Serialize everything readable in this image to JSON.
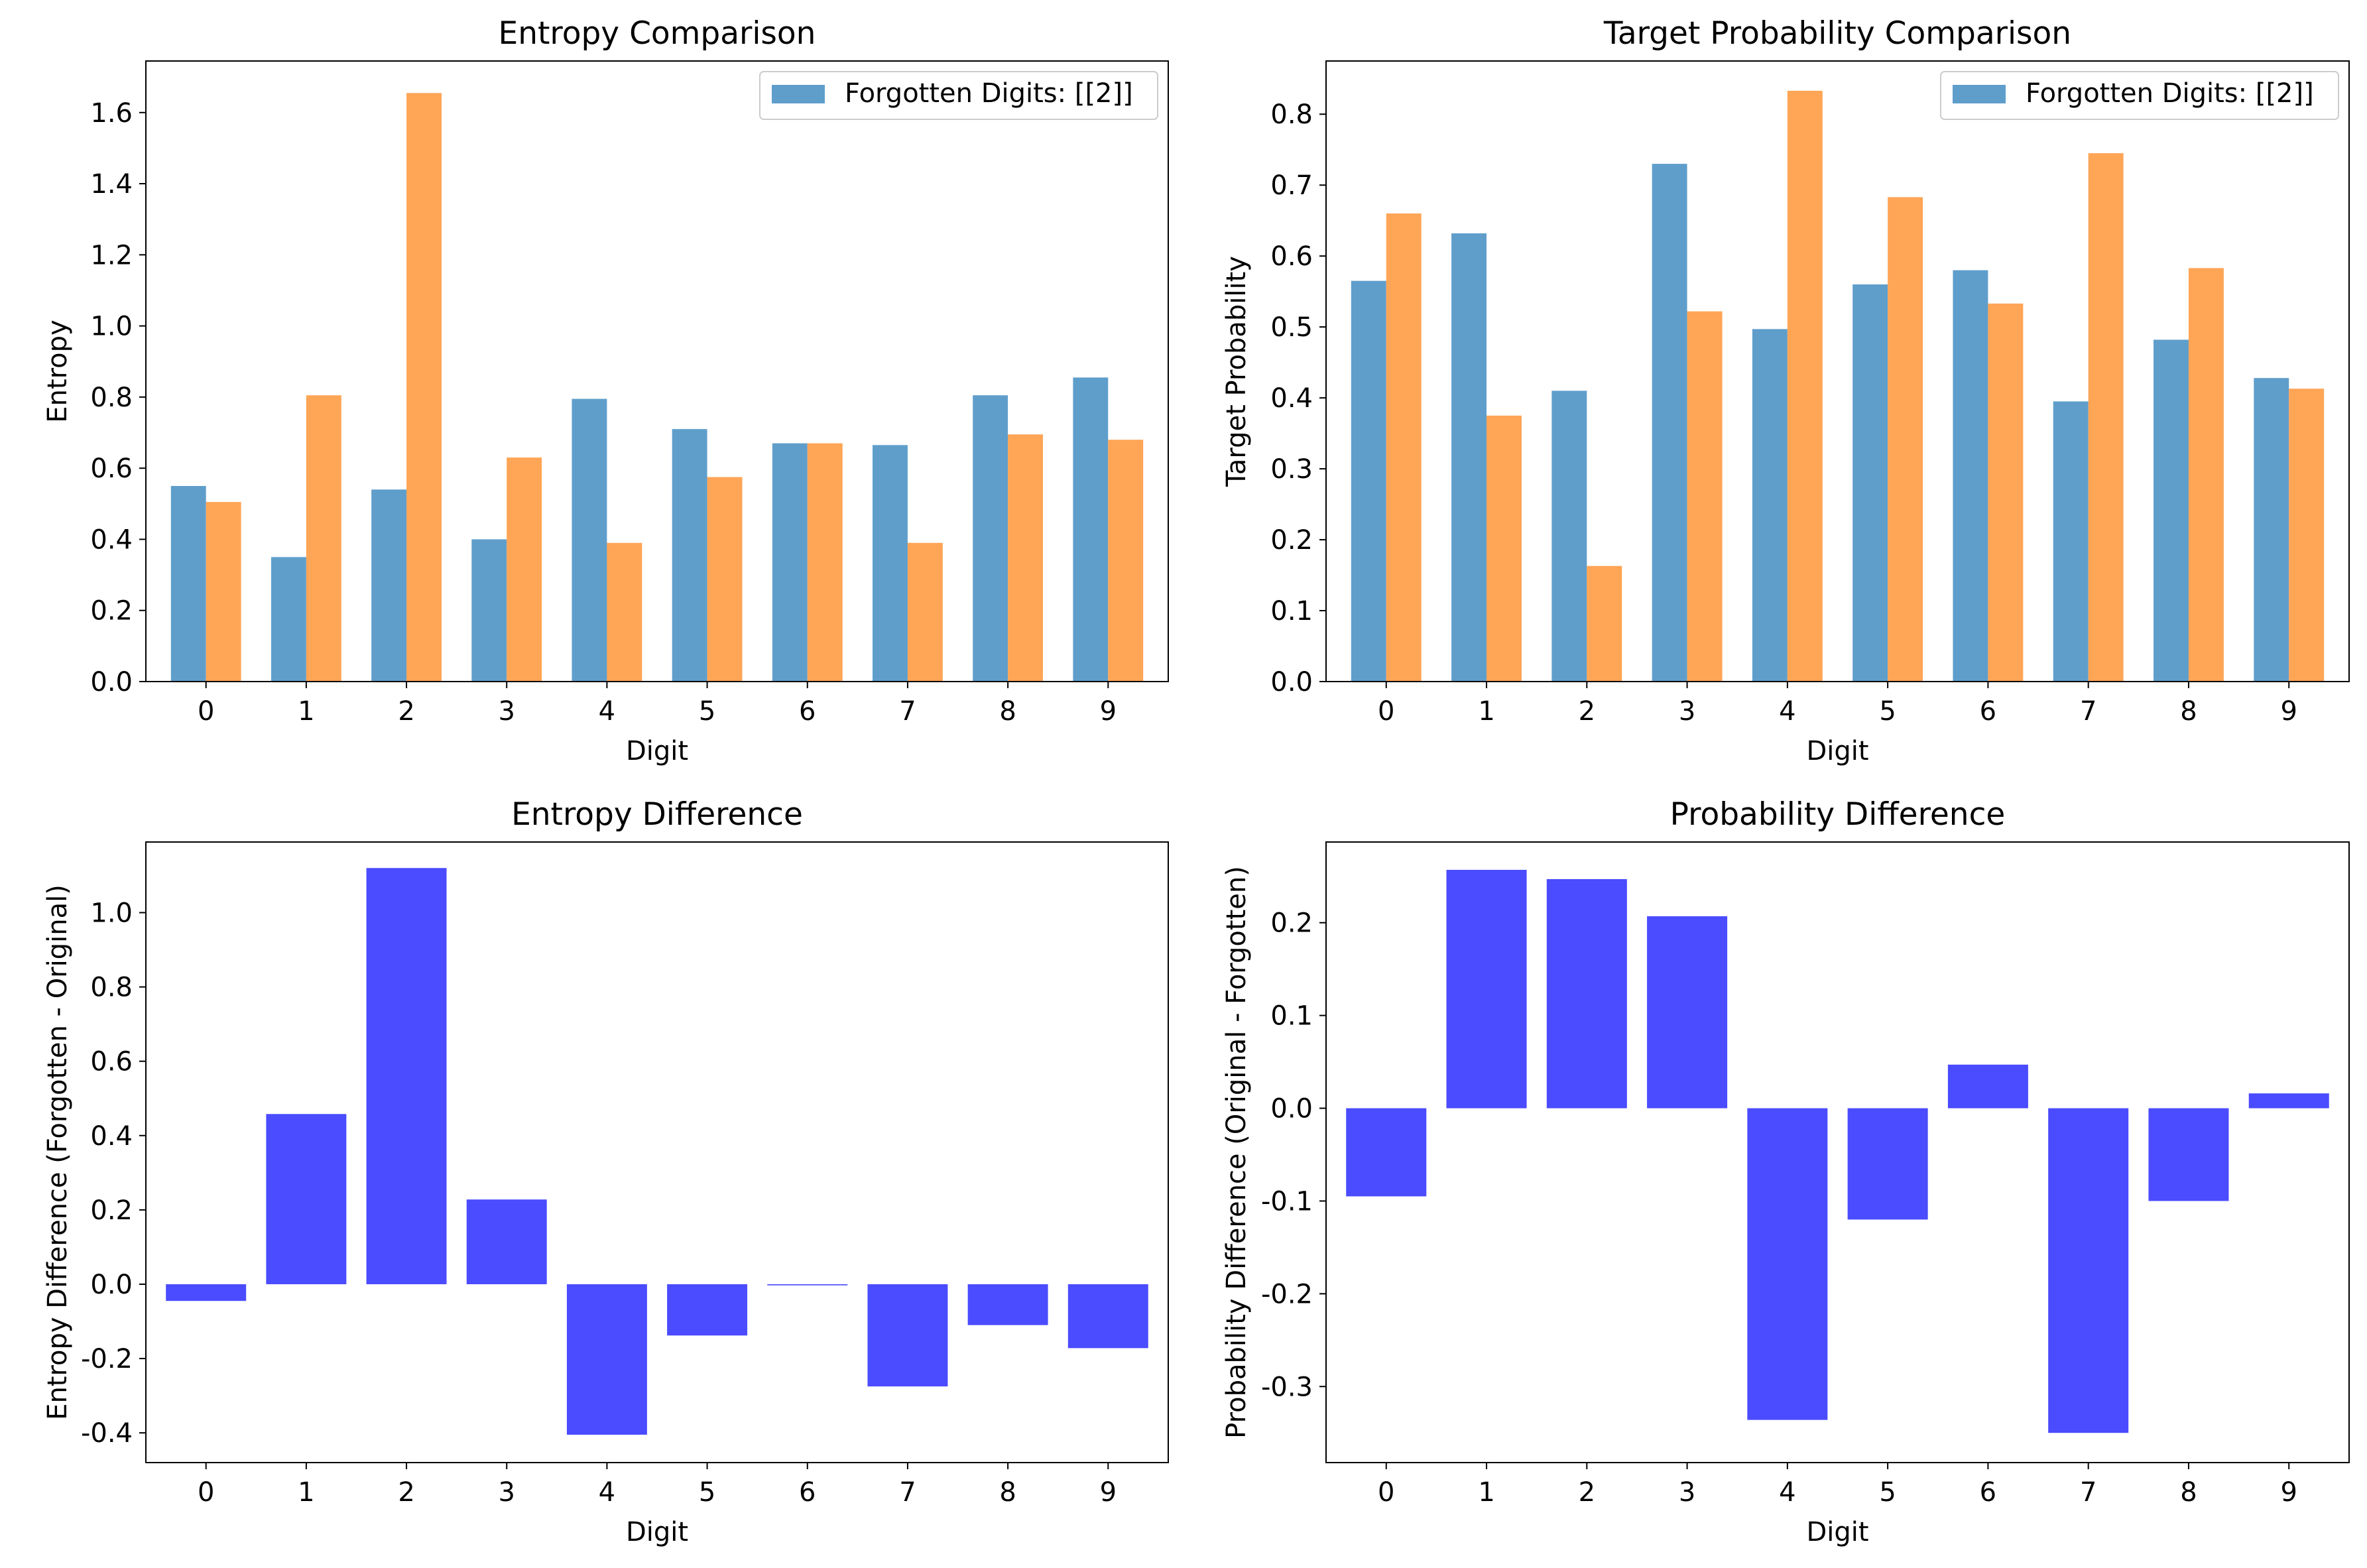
{
  "colors": {
    "series_a": "#5f9ecb",
    "series_b": "#ffa556",
    "diff": "#4b4bff",
    "axis": "#000000"
  },
  "chart_data": [
    {
      "type": "bar",
      "title": "Entropy Comparison",
      "xlabel": "Digit",
      "ylabel": "Entropy",
      "categories": [
        "0",
        "1",
        "2",
        "3",
        "4",
        "5",
        "6",
        "7",
        "8",
        "9"
      ],
      "series": [
        {
          "name": "Forgotten Digits: [[2]]",
          "color_key": "series_a",
          "values": [
            0.55,
            0.35,
            0.54,
            0.4,
            0.795,
            0.71,
            0.67,
            0.665,
            0.805,
            0.855
          ]
        },
        {
          "color_key": "series_b",
          "values": [
            0.505,
            0.805,
            1.655,
            0.63,
            0.39,
            0.575,
            0.67,
            0.39,
            0.695,
            0.68
          ]
        }
      ],
      "ylim": [
        0,
        1.745
      ],
      "yticks": [
        0.0,
        0.2,
        0.4,
        0.6,
        0.8,
        1.0,
        1.2,
        1.4,
        1.6
      ],
      "ytick_labels": [
        "0.0",
        "0.2",
        "0.4",
        "0.6",
        "0.8",
        "1.0",
        "1.2",
        "1.4",
        "1.6"
      ],
      "legend": "top-right",
      "grouped": true
    },
    {
      "type": "bar",
      "title": "Target Probability Comparison",
      "xlabel": "Digit",
      "ylabel": "Target Probability",
      "categories": [
        "0",
        "1",
        "2",
        "3",
        "4",
        "5",
        "6",
        "7",
        "8",
        "9"
      ],
      "series": [
        {
          "name": "Forgotten Digits: [[2]]",
          "color_key": "series_a",
          "values": [
            0.565,
            0.632,
            0.41,
            0.73,
            0.497,
            0.56,
            0.58,
            0.395,
            0.482,
            0.428
          ]
        },
        {
          "color_key": "series_b",
          "values": [
            0.66,
            0.375,
            0.163,
            0.522,
            0.833,
            0.683,
            0.533,
            0.745,
            0.583,
            0.413
          ]
        }
      ],
      "ylim": [
        0,
        0.875
      ],
      "yticks": [
        0.0,
        0.1,
        0.2,
        0.3,
        0.4,
        0.5,
        0.6,
        0.7,
        0.8
      ],
      "ytick_labels": [
        "0.0",
        "0.1",
        "0.2",
        "0.3",
        "0.4",
        "0.5",
        "0.6",
        "0.7",
        "0.8"
      ],
      "legend": "top-right",
      "grouped": true
    },
    {
      "type": "bar",
      "title": "Entropy Difference",
      "xlabel": "Digit",
      "ylabel": "Entropy Difference (Forgotten - Original)",
      "categories": [
        "0",
        "1",
        "2",
        "3",
        "4",
        "5",
        "6",
        "7",
        "8",
        "9"
      ],
      "series": [
        {
          "color_key": "diff",
          "values": [
            -0.045,
            0.458,
            1.12,
            0.228,
            -0.405,
            -0.138,
            -0.003,
            -0.275,
            -0.11,
            -0.172
          ]
        }
      ],
      "ylim": [
        -0.48,
        1.19
      ],
      "yticks": [
        -0.4,
        -0.2,
        0.0,
        0.2,
        0.4,
        0.6,
        0.8,
        1.0
      ],
      "ytick_labels": [
        "-0.4",
        "-0.2",
        "0.0",
        "0.2",
        "0.4",
        "0.6",
        "0.8",
        "1.0"
      ],
      "grouped": false
    },
    {
      "type": "bar",
      "title": "Probability Difference",
      "xlabel": "Digit",
      "ylabel": "Probability Difference (Original - Forgotten)",
      "categories": [
        "0",
        "1",
        "2",
        "3",
        "4",
        "5",
        "6",
        "7",
        "8",
        "9"
      ],
      "series": [
        {
          "color_key": "diff",
          "values": [
            -0.095,
            0.257,
            0.247,
            0.207,
            -0.336,
            -0.12,
            0.047,
            -0.35,
            -0.1,
            0.016
          ]
        }
      ],
      "ylim": [
        -0.382,
        0.287
      ],
      "yticks": [
        -0.3,
        -0.2,
        -0.1,
        0.0,
        0.1,
        0.2
      ],
      "ytick_labels": [
        "-0.3",
        "-0.2",
        "-0.1",
        "0.0",
        "0.1",
        "0.2"
      ],
      "grouped": false
    }
  ]
}
